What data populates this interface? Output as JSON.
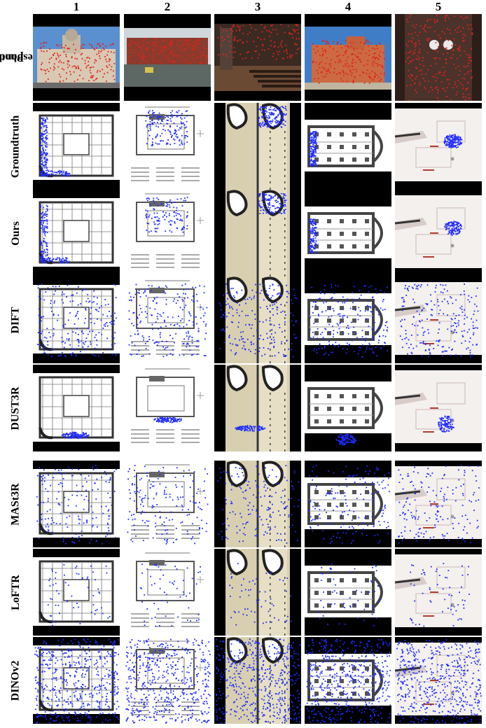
{
  "columns": [
    "1",
    "2",
    "3",
    "4",
    "5"
  ],
  "rows": [
    {
      "label_line1": "Photo",
      "label_line2": "+ Correspondence"
    },
    {
      "label_line1": "Groundtruth",
      "label_line2": ""
    },
    {
      "label_line1": "Ours",
      "label_line2": ""
    },
    {
      "label_line1": "DIFT",
      "label_line2": ""
    },
    {
      "label_line1": "DUST3R",
      "label_line2": ""
    },
    {
      "label_line1": "MASt3R",
      "label_line2": ""
    },
    {
      "label_line1": "LoFTR",
      "label_line2": ""
    },
    {
      "label_line1": "DINOv2",
      "label_line2": ""
    }
  ],
  "colors": {
    "match": "#1f2cff",
    "photo_highlight": "#e2231a",
    "plan_ink": "#333333",
    "church_paper": "#d8cfb0"
  }
}
